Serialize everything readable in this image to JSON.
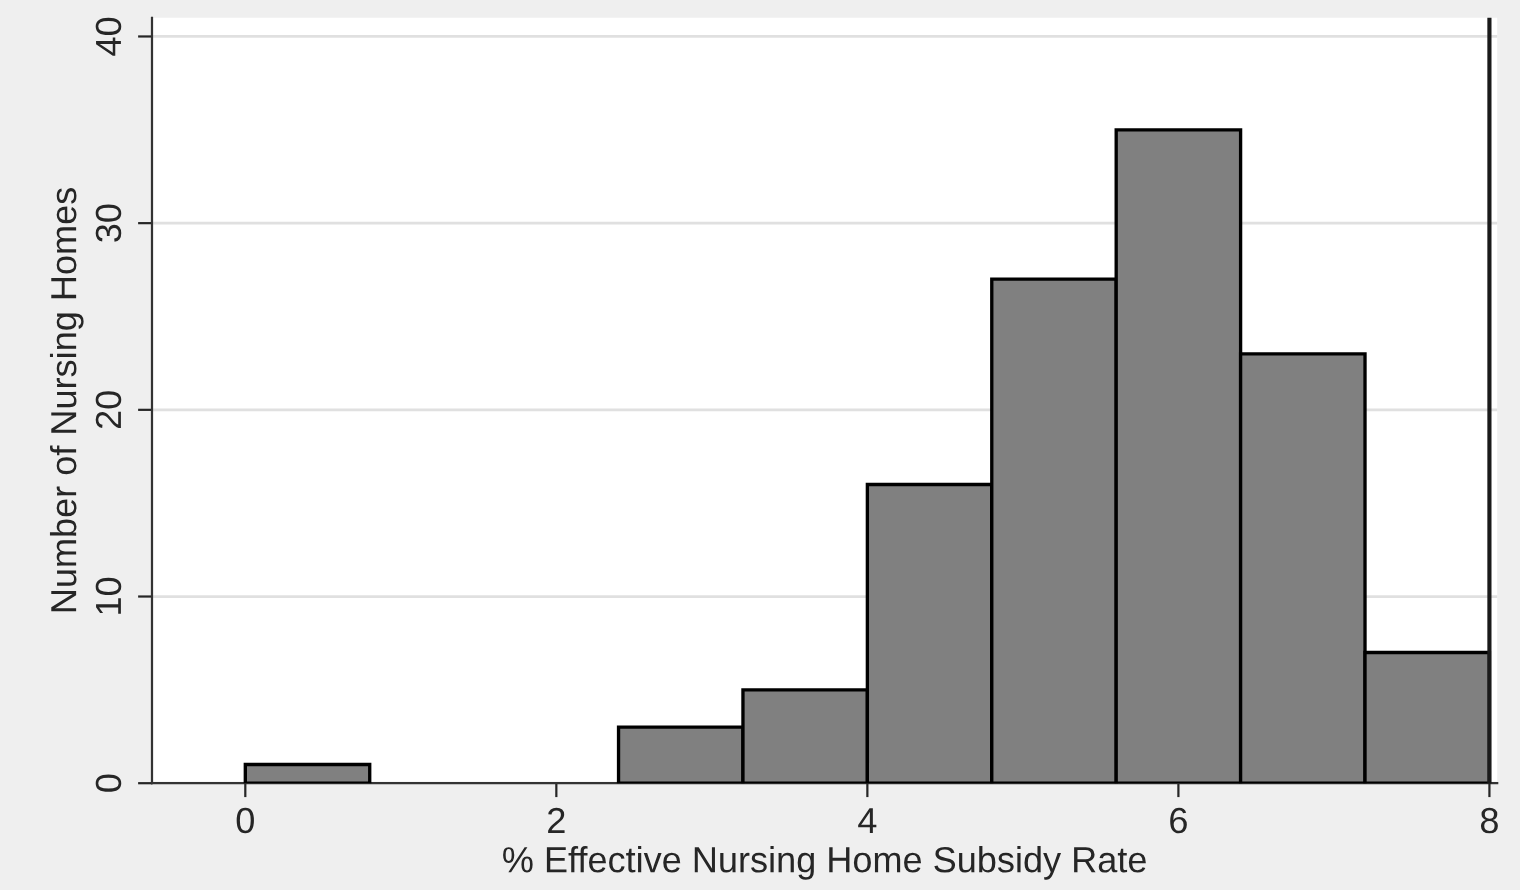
{
  "chart_data": {
    "type": "histogram",
    "xlabel": "% Effective Nursing Home Subsidy Rate",
    "ylabel": "Number of Nursing Homes",
    "bins": [
      0,
      0.8,
      1.6,
      2.4,
      3.2,
      4.0,
      4.8,
      5.6,
      6.4,
      7.2,
      8.0
    ],
    "values": [
      1,
      0,
      0,
      3,
      5,
      16,
      27,
      35,
      23,
      7
    ],
    "color": "#808080",
    "xlim": [
      -0.6,
      8.05
    ],
    "xticks": [
      0,
      2,
      4,
      6,
      8
    ],
    "ylim": [
      0,
      41
    ],
    "yticks": [
      0,
      10,
      20,
      30,
      40
    ],
    "grid": "y",
    "ref_lines": [
      {
        "axis": "x",
        "value": 8,
        "color": "#1a1a1a"
      }
    ]
  }
}
